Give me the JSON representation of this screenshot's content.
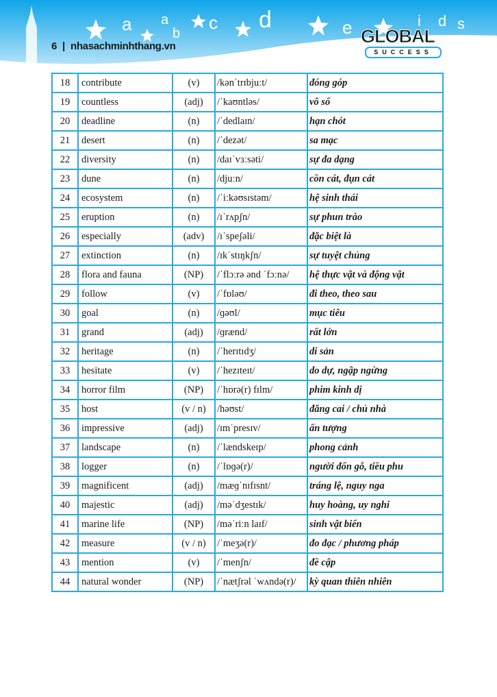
{
  "header": {
    "page_number": "6",
    "separator": "|",
    "website": "nhasachminhthang.vn",
    "decor_letters": [
      "a",
      "a",
      "b",
      "c",
      "d",
      "e",
      "i",
      "d",
      "s"
    ],
    "logo_text": "GLOBAL",
    "logo_subtext": "SUCCESS",
    "colors": {
      "sky": "#1aa6e6",
      "table_border": "#29a8e0"
    }
  },
  "vocabulary": [
    {
      "no": "18",
      "word": "contribute",
      "pos": "(v)",
      "ipa": "/kənˈtrɪbjuːt/",
      "meaning": "đóng góp"
    },
    {
      "no": "19",
      "word": "countless",
      "pos": "(adj)",
      "ipa": "/ˈkaʊntləs/",
      "meaning": "vô số"
    },
    {
      "no": "20",
      "word": "deadline",
      "pos": "(n)",
      "ipa": "/ˈdedlaɪn/",
      "meaning": "hạn chót"
    },
    {
      "no": "21",
      "word": "desert",
      "pos": "(n)",
      "ipa": "/ˈdezət/",
      "meaning": "sa mạc"
    },
    {
      "no": "22",
      "word": "diversity",
      "pos": "(n)",
      "ipa": "/daɪˈvɜːsəti/",
      "meaning": "sự đa dạng"
    },
    {
      "no": "23",
      "word": "dune",
      "pos": "(n)",
      "ipa": "/djuːn/",
      "meaning": "cồn cát, đụn cát"
    },
    {
      "no": "24",
      "word": "ecosystem",
      "pos": "(n)",
      "ipa": "/ˈiːkəʊsɪstəm/",
      "meaning": "hệ sinh thái"
    },
    {
      "no": "25",
      "word": "eruption",
      "pos": "(n)",
      "ipa": "/ɪˈrʌpʃn/",
      "meaning": "sự phun trào"
    },
    {
      "no": "26",
      "word": "especially",
      "pos": "(adv)",
      "ipa": "/ɪˈspeʃəli/",
      "meaning": "đặc biệt là"
    },
    {
      "no": "27",
      "word": "extinction",
      "pos": "(n)",
      "ipa": "/ɪkˈstɪŋkʃn/",
      "meaning": "sự tuyệt chủng"
    },
    {
      "no": "28",
      "word": "flora and fauna",
      "pos": "(NP)",
      "ipa": "/ˈflɔːrə ənd ˈfɔːnə/",
      "meaning": "hệ thực vật và động vật"
    },
    {
      "no": "29",
      "word": "follow",
      "pos": "(v)",
      "ipa": "/ˈfɒləʊ/",
      "meaning": "đi theo, theo sau"
    },
    {
      "no": "30",
      "word": "goal",
      "pos": "(n)",
      "ipa": "/ɡəʊl/",
      "meaning": "mục tiêu"
    },
    {
      "no": "31",
      "word": "grand",
      "pos": "(adj)",
      "ipa": "/ɡrænd/",
      "meaning": "rất lớn"
    },
    {
      "no": "32",
      "word": "heritage",
      "pos": "(n)",
      "ipa": "/ˈherɪtɪdʒ/",
      "meaning": "di sản"
    },
    {
      "no": "33",
      "word": "hesitate",
      "pos": "(v)",
      "ipa": "/ˈhezɪteɪt/",
      "meaning": "do dự, ngập ngừng"
    },
    {
      "no": "34",
      "word": "horror film",
      "pos": "(NP)",
      "ipa": "/ˈhɒrə(r) fɪlm/",
      "meaning": "phim kinh dị"
    },
    {
      "no": "35",
      "word": "host",
      "pos": "(v / n)",
      "ipa": "/həʊst/",
      "meaning": "đăng cai / chủ nhà"
    },
    {
      "no": "36",
      "word": "impressive",
      "pos": "(adj)",
      "ipa": "/ɪmˈpresɪv/",
      "meaning": "ấn tượng"
    },
    {
      "no": "37",
      "word": "landscape",
      "pos": "(n)",
      "ipa": "/ˈlændskeɪp/",
      "meaning": "phong cảnh"
    },
    {
      "no": "38",
      "word": "logger",
      "pos": "(n)",
      "ipa": "/ˈlɒɡə(r)/",
      "meaning": "người đốn gỗ, tiều phu"
    },
    {
      "no": "39",
      "word": "magnificent",
      "pos": "(adj)",
      "ipa": "/mæɡˈnɪfɪsnt/",
      "meaning": "tráng lệ, nguy nga"
    },
    {
      "no": "40",
      "word": "majestic",
      "pos": "(adj)",
      "ipa": "/məˈdʒestɪk/",
      "meaning": "huy hoàng, uy nghi"
    },
    {
      "no": "41",
      "word": "marine life",
      "pos": "(NP)",
      "ipa": "/məˈriːn laɪf/",
      "meaning": "sinh vật biển"
    },
    {
      "no": "42",
      "word": "measure",
      "pos": "(v / n)",
      "ipa": "/ˈmeʒə(r)/",
      "meaning": "đo đạc / phương pháp"
    },
    {
      "no": "43",
      "word": "mention",
      "pos": "(v)",
      "ipa": "/ˈmenʃn/",
      "meaning": "đề cập"
    },
    {
      "no": "44",
      "word": "natural wonder",
      "pos": "(NP)",
      "ipa": "/ˈnætʃrəl ˈwʌndə(r)/",
      "meaning": "kỳ quan thiên nhiên"
    }
  ]
}
